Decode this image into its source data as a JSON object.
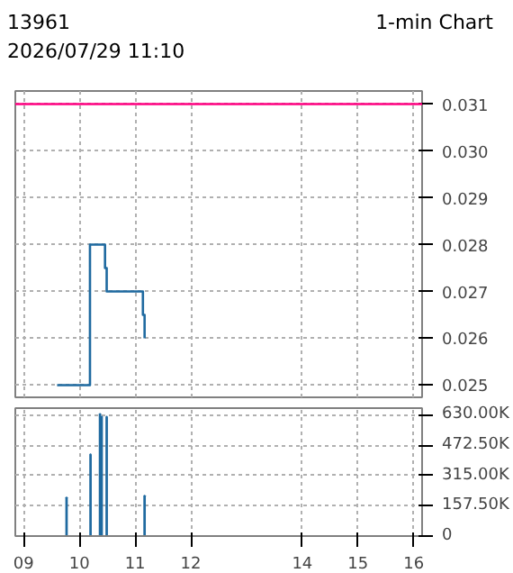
{
  "chart_data": [
    {
      "type": "step",
      "title": "13961",
      "subtitle": "2026/07/29 11:10",
      "annotations": [
        "1-min Chart"
      ],
      "x": [
        9.6,
        10.19,
        10.46,
        10.49,
        11.14,
        11.17
      ],
      "series": [
        {
          "color": "#1f6aa0",
          "values": [
            0.025,
            0.028,
            0.0275,
            0.027,
            0.0265,
            0.026
          ]
        }
      ],
      "xlim": [
        8.85,
        16.15
      ],
      "xticks": [
        9,
        10,
        11,
        12,
        14,
        15,
        16
      ],
      "ylim": [
        0.02474,
        0.03128
      ],
      "yticks": [
        0.025,
        0.026,
        0.027,
        0.028,
        0.029,
        {
          "value": 0.03,
          "label": "0.030"
        },
        0.031
      ],
      "ref_lines": [
        {
          "axis": "y",
          "value": 0.031,
          "color": "#ff0080"
        }
      ],
      "grid": true,
      "tick_labels": "y"
    },
    {
      "type": "bar",
      "x": [
        9.77,
        10.2,
        10.37,
        10.4,
        10.49,
        11.17
      ],
      "series": [
        {
          "color": "#1f6aa0",
          "values": [
            200000,
            425000,
            635000,
            620000,
            620000,
            210000
          ]
        }
      ],
      "xlim": [
        8.85,
        16.15
      ],
      "xticks": [
        {
          "value": 9,
          "label": "09"
        },
        10,
        11,
        12,
        14,
        15,
        16
      ],
      "ylim": [
        0,
        665000
      ],
      "yticks": [
        0,
        {
          "value": 157500,
          "label": "157.50K"
        },
        {
          "value": 315000,
          "label": "315.00K"
        },
        {
          "value": 472500,
          "label": "472.50K"
        },
        {
          "value": 630000,
          "label": "630.00K"
        }
      ],
      "grid": true
    }
  ]
}
